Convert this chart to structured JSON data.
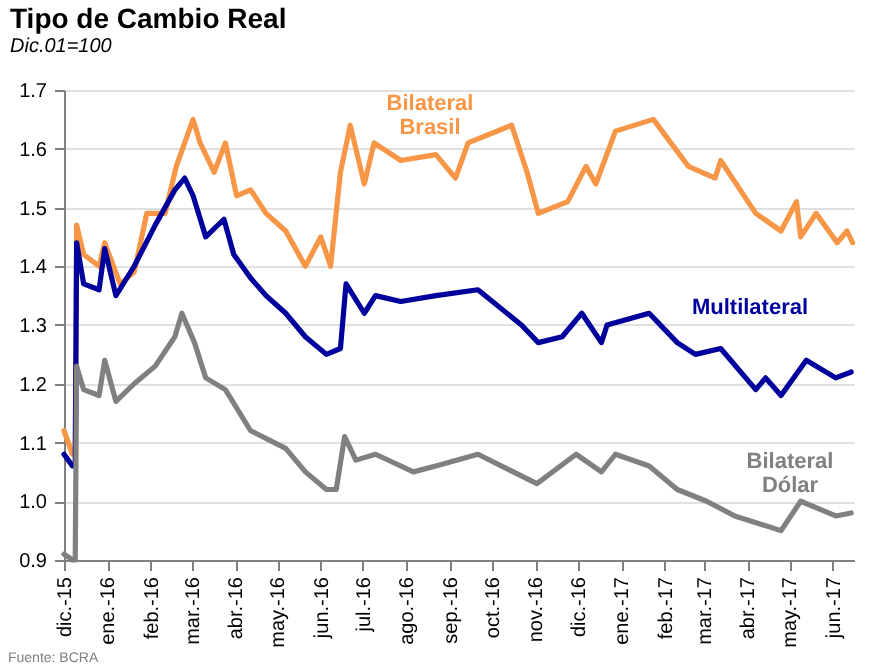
{
  "chart_data": {
    "type": "line",
    "title": "Tipo de Cambio Real",
    "subtitle": "Dic.01=100",
    "annotations": [
      "Fuente: BCRA"
    ],
    "xlim": [
      "2015-12-01",
      "2017-06-16"
    ],
    "xticks": [
      {
        "value": "2015-12-01",
        "label": "dic.-15"
      },
      {
        "value": "2016-01-01",
        "label": "ene.-16"
      },
      {
        "value": "2016-02-01",
        "label": "feb.-16"
      },
      {
        "value": "2016-03-01",
        "label": "mar.-16"
      },
      {
        "value": "2016-04-01",
        "label": "abr.-16"
      },
      {
        "value": "2016-05-01",
        "label": "may.-16"
      },
      {
        "value": "2016-06-01",
        "label": "jun.-16"
      },
      {
        "value": "2016-07-01",
        "label": "jul.-16"
      },
      {
        "value": "2016-08-01",
        "label": "ago.-16"
      },
      {
        "value": "2016-09-01",
        "label": "sep.-16"
      },
      {
        "value": "2016-10-01",
        "label": "oct.-16"
      },
      {
        "value": "2016-11-01",
        "label": "nov.-16"
      },
      {
        "value": "2016-12-01",
        "label": "dic.-16"
      },
      {
        "value": "2017-01-01",
        "label": "ene.-17"
      },
      {
        "value": "2017-02-01",
        "label": "feb.-17"
      },
      {
        "value": "2017-03-01",
        "label": "mar.-17"
      },
      {
        "value": "2017-04-01",
        "label": "abr.-17"
      },
      {
        "value": "2017-05-01",
        "label": "may.-17"
      },
      {
        "value": "2017-06-01",
        "label": "jun.-17"
      }
    ],
    "ylim": [
      0.9,
      1.7
    ],
    "yticks": [
      {
        "value": 0.9,
        "label": "0.9"
      },
      {
        "value": 1.0,
        "label": "1.0"
      },
      1.1,
      1.2,
      1.3,
      1.4,
      1.5,
      1.6,
      1.7
    ],
    "grid": "y",
    "marker": "none",
    "line_style": "solid",
    "series": [
      {
        "name": "Bilateral Brasil",
        "color": "#f79646",
        "x": [
          "2015-12-01",
          "2015-12-07",
          "2015-12-09",
          "2015-12-10",
          "2015-12-15",
          "2015-12-26",
          "2015-12-30",
          "2016-01-10",
          "2016-01-20",
          "2016-01-29",
          "2016-02-11",
          "2016-02-19",
          "2016-03-02",
          "2016-03-07",
          "2016-03-17",
          "2016-03-25",
          "2016-04-02",
          "2016-04-12",
          "2016-04-23",
          "2016-05-07",
          "2016-05-21",
          "2016-06-01",
          "2016-06-08",
          "2016-06-15",
          "2016-06-22",
          "2016-07-02",
          "2016-07-09",
          "2016-07-28",
          "2016-08-22",
          "2016-09-05",
          "2016-09-14",
          "2016-10-15",
          "2016-10-26",
          "2016-11-03",
          "2016-11-24",
          "2016-12-07",
          "2016-12-14",
          "2016-12-28",
          "2017-01-24",
          "2017-02-18",
          "2017-03-09",
          "2017-03-13",
          "2017-04-07",
          "2017-04-25",
          "2017-05-06",
          "2017-05-09",
          "2017-05-20",
          "2017-06-04",
          "2017-06-11",
          "2017-06-15"
        ],
        "values": [
          1.12,
          1.08,
          1.08,
          1.47,
          1.42,
          1.4,
          1.44,
          1.37,
          1.39,
          1.49,
          1.49,
          1.57,
          1.65,
          1.61,
          1.56,
          1.61,
          1.52,
          1.53,
          1.49,
          1.46,
          1.4,
          1.45,
          1.4,
          1.56,
          1.64,
          1.54,
          1.61,
          1.58,
          1.59,
          1.55,
          1.61,
          1.64,
          1.56,
          1.49,
          1.51,
          1.57,
          1.54,
          1.63,
          1.65,
          1.57,
          1.55,
          1.58,
          1.49,
          1.46,
          1.51,
          1.45,
          1.49,
          1.44,
          1.46,
          1.44
        ]
      },
      {
        "name": "Multilateral",
        "color": "#00009c",
        "x": [
          "2015-12-01",
          "2015-12-07",
          "2015-12-09",
          "2015-12-10",
          "2015-12-15",
          "2015-12-26",
          "2015-12-30",
          "2016-01-07",
          "2016-01-20",
          "2016-02-04",
          "2016-02-18",
          "2016-02-25",
          "2016-03-02",
          "2016-03-11",
          "2016-03-24",
          "2016-03-31",
          "2016-04-12",
          "2016-04-23",
          "2016-05-07",
          "2016-05-21",
          "2016-06-05",
          "2016-06-15",
          "2016-06-19",
          "2016-07-02",
          "2016-07-10",
          "2016-07-28",
          "2016-08-22",
          "2016-09-21",
          "2016-10-22",
          "2016-11-03",
          "2016-11-20",
          "2016-12-04",
          "2016-12-18",
          "2016-12-22",
          "2017-01-21",
          "2017-02-10",
          "2017-02-23",
          "2017-03-13",
          "2017-04-07",
          "2017-04-14",
          "2017-04-25",
          "2017-05-13",
          "2017-06-03",
          "2017-06-14"
        ],
        "values": [
          1.08,
          1.06,
          1.06,
          1.44,
          1.37,
          1.36,
          1.43,
          1.35,
          1.4,
          1.47,
          1.53,
          1.55,
          1.52,
          1.45,
          1.48,
          1.42,
          1.38,
          1.35,
          1.32,
          1.28,
          1.25,
          1.26,
          1.37,
          1.32,
          1.35,
          1.34,
          1.35,
          1.36,
          1.3,
          1.27,
          1.28,
          1.32,
          1.27,
          1.3,
          1.32,
          1.27,
          1.25,
          1.26,
          1.19,
          1.21,
          1.18,
          1.24,
          1.21,
          1.22
        ]
      },
      {
        "name": "Bilateral Dólar",
        "color": "#808080",
        "x": [
          "2015-12-01",
          "2015-12-07",
          "2015-12-09",
          "2015-12-10",
          "2015-12-15",
          "2015-12-26",
          "2015-12-30",
          "2016-01-07",
          "2016-01-20",
          "2016-02-04",
          "2016-02-18",
          "2016-02-23",
          "2016-03-03",
          "2016-03-11",
          "2016-03-25",
          "2016-04-12",
          "2016-05-07",
          "2016-05-21",
          "2016-06-05",
          "2016-06-12",
          "2016-06-18",
          "2016-06-26",
          "2016-07-10",
          "2016-08-06",
          "2016-08-22",
          "2016-09-21",
          "2016-11-02",
          "2016-11-30",
          "2016-12-18",
          "2016-12-28",
          "2017-01-21",
          "2017-02-10",
          "2017-03-03",
          "2017-03-23",
          "2017-04-25",
          "2017-05-09",
          "2017-06-03",
          "2017-06-14"
        ],
        "values": [
          0.91,
          0.9,
          0.9,
          1.23,
          1.19,
          1.18,
          1.24,
          1.17,
          1.2,
          1.23,
          1.28,
          1.32,
          1.27,
          1.21,
          1.19,
          1.12,
          1.09,
          1.05,
          1.02,
          1.02,
          1.11,
          1.07,
          1.08,
          1.05,
          1.06,
          1.08,
          1.03,
          1.08,
          1.05,
          1.08,
          1.06,
          1.02,
          1.0,
          0.975,
          0.95,
          1.0,
          0.975,
          0.98
        ]
      }
    ]
  }
}
